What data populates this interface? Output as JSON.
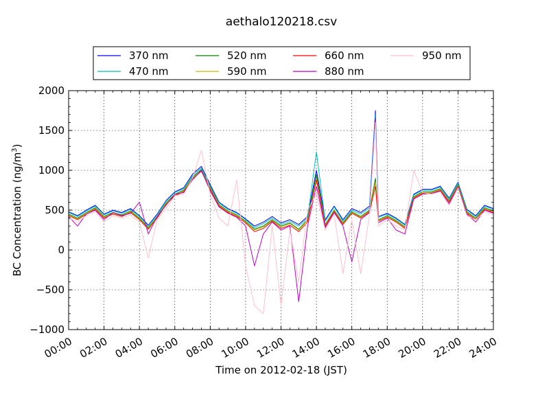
{
  "chart_data": {
    "type": "line",
    "title": "aethalo120218.csv",
    "xlabel": "Time on 2012-02-18 (JST)",
    "ylabel_main": "BC Concentration (ng/m",
    "ylabel_sup": "3",
    "ylabel_close": ")",
    "xlim": [
      "00:00",
      "24:00"
    ],
    "ylim": [
      -1000,
      2000
    ],
    "x_ticks": [
      "00:00",
      "02:00",
      "04:00",
      "06:00",
      "08:00",
      "10:00",
      "12:00",
      "14:00",
      "16:00",
      "18:00",
      "20:00",
      "22:00",
      "24:00"
    ],
    "y_ticks": [
      "−1000",
      "−500",
      "0",
      "500",
      "1000",
      "1500",
      "2000"
    ],
    "grid": true,
    "legend_position": "top-center",
    "x": [
      "00:00",
      "00:30",
      "01:00",
      "01:30",
      "02:00",
      "02:30",
      "03:00",
      "03:30",
      "04:00",
      "04:30",
      "05:00",
      "05:30",
      "06:00",
      "06:30",
      "07:00",
      "07:30",
      "08:00",
      "08:30",
      "09:00",
      "09:30",
      "10:00",
      "10:30",
      "11:00",
      "11:30",
      "12:00",
      "12:30",
      "13:00",
      "13:30",
      "14:00",
      "14:30",
      "15:00",
      "15:30",
      "16:00",
      "16:30",
      "17:00",
      "17:20",
      "17:30",
      "18:00",
      "18:30",
      "19:00",
      "19:30",
      "20:00",
      "20:30",
      "21:00",
      "21:30",
      "22:00",
      "22:30",
      "23:00",
      "23:30",
      "24:00"
    ],
    "series": [
      {
        "name": "370 nm",
        "color": "#0000ff",
        "values": [
          480,
          430,
          500,
          560,
          450,
          500,
          470,
          520,
          430,
          310,
          450,
          620,
          730,
          780,
          950,
          1050,
          820,
          600,
          520,
          470,
          390,
          300,
          350,
          420,
          340,
          380,
          320,
          420,
          1000,
          380,
          550,
          380,
          520,
          470,
          550,
          1750,
          420,
          460,
          400,
          320,
          700,
          760,
          760,
          800,
          650,
          850,
          510,
          430,
          560,
          520
        ]
      },
      {
        "name": "470 nm",
        "color": "#00bfbf",
        "values": [
          470,
          420,
          490,
          550,
          440,
          490,
          460,
          510,
          420,
          300,
          440,
          610,
          720,
          770,
          930,
          1030,
          800,
          590,
          510,
          460,
          380,
          280,
          330,
          400,
          320,
          360,
          300,
          400,
          1230,
          360,
          540,
          360,
          500,
          450,
          530,
          1700,
          410,
          450,
          390,
          310,
          690,
          750,
          750,
          790,
          640,
          840,
          500,
          420,
          550,
          510
        ]
      },
      {
        "name": "520 nm",
        "color": "#008000",
        "values": [
          450,
          400,
          470,
          530,
          420,
          470,
          440,
          490,
          400,
          280,
          420,
          590,
          700,
          750,
          910,
          1010,
          780,
          570,
          490,
          440,
          360,
          260,
          300,
          380,
          300,
          340,
          260,
          380,
          950,
          320,
          500,
          340,
          480,
          420,
          500,
          900,
          380,
          430,
          370,
          290,
          670,
          730,
          730,
          770,
          620,
          820,
          480,
          400,
          530,
          490
        ]
      },
      {
        "name": "590 nm",
        "color": "#bfbf00",
        "values": [
          440,
          390,
          460,
          520,
          410,
          460,
          430,
          480,
          390,
          270,
          410,
          580,
          690,
          740,
          900,
          1000,
          770,
          560,
          480,
          430,
          350,
          250,
          290,
          370,
          290,
          330,
          250,
          370,
          900,
          310,
          490,
          330,
          470,
          410,
          490,
          850,
          370,
          420,
          360,
          280,
          660,
          720,
          720,
          760,
          610,
          810,
          470,
          390,
          520,
          480
        ]
      },
      {
        "name": "660 nm",
        "color": "#ff0000",
        "values": [
          430,
          380,
          450,
          510,
          400,
          450,
          420,
          470,
          380,
          260,
          400,
          570,
          680,
          730,
          890,
          990,
          760,
          550,
          470,
          420,
          340,
          230,
          270,
          360,
          270,
          310,
          230,
          350,
          880,
          300,
          480,
          320,
          460,
          400,
          480,
          800,
          360,
          410,
          350,
          270,
          650,
          710,
          710,
          750,
          600,
          800,
          460,
          380,
          510,
          470
        ]
      },
      {
        "name": "880 nm",
        "color": "#bf00bf",
        "values": [
          420,
          300,
          450,
          500,
          380,
          470,
          430,
          460,
          600,
          200,
          420,
          560,
          700,
          720,
          880,
          1000,
          740,
          540,
          460,
          410,
          300,
          -200,
          200,
          350,
          250,
          300,
          -650,
          300,
          800,
          280,
          470,
          300,
          -150,
          380,
          470,
          1650,
          340,
          400,
          250,
          200,
          640,
          700,
          710,
          740,
          580,
          790,
          450,
          350,
          500,
          460
        ]
      },
      {
        "name": "950 nm",
        "color": "#ffc0cb",
        "values": [
          400,
          350,
          430,
          480,
          350,
          430,
          400,
          440,
          350,
          -100,
          380,
          520,
          680,
          700,
          900,
          1250,
          700,
          400,
          300,
          880,
          -200,
          -700,
          -800,
          300,
          -700,
          250,
          -400,
          500,
          700,
          250,
          450,
          -300,
          380,
          -300,
          450,
          1600,
          300,
          380,
          300,
          250,
          1000,
          720,
          700,
          730,
          560,
          780,
          430,
          380,
          480,
          440
        ]
      }
    ]
  }
}
